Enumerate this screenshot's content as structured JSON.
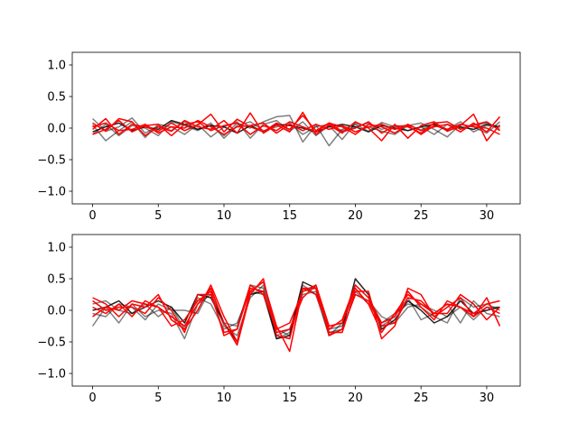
{
  "chart_data": [
    {
      "type": "line",
      "title": "",
      "xlabel": "",
      "ylabel": "",
      "xlim": [
        -1.55,
        32.55
      ],
      "ylim": [
        -1.2,
        1.2
      ],
      "xticks": [
        0,
        5,
        10,
        15,
        20,
        25,
        30
      ],
      "yticks": [
        -1.0,
        -0.5,
        0.0,
        0.5,
        1.0
      ],
      "xtick_labels": [
        "0",
        "5",
        "10",
        "15",
        "20",
        "25",
        "30"
      ],
      "ytick_labels": [
        "−1.0",
        "−0.5",
        "0.0",
        "0.5",
        "1.0"
      ],
      "grid": false,
      "x": [
        0,
        1,
        2,
        3,
        4,
        5,
        6,
        7,
        8,
        9,
        10,
        11,
        12,
        13,
        14,
        15,
        16,
        17,
        18,
        19,
        20,
        21,
        22,
        23,
        24,
        25,
        26,
        27,
        28,
        29,
        30,
        31
      ],
      "series": [
        {
          "color": "#000000",
          "opacity": 0.5,
          "values": [
            0.15,
            -0.05,
            0.02,
            0.16,
            -0.08,
            0.03,
            -0.04,
            0.1,
            -0.02,
            0.05,
            -0.12,
            0.08,
            0.0,
            0.1,
            0.18,
            0.2,
            -0.22,
            0.05,
            -0.28,
            -0.02,
            0.06,
            -0.05,
            0.09,
            0.02,
            0.05,
            -0.03,
            0.07,
            -0.02,
            0.1,
            -0.06,
            0.04,
            0.02
          ]
        },
        {
          "color": "#000000",
          "opacity": 0.5,
          "values": [
            0.05,
            -0.2,
            -0.04,
            0.1,
            -0.15,
            0.06,
            0.02,
            -0.1,
            0.06,
            -0.14,
            0.02,
            0.1,
            -0.16,
            0.06,
            0.12,
            -0.05,
            0.1,
            -0.12,
            0.04,
            -0.18,
            0.08,
            0.02,
            -0.05,
            -0.1,
            0.04,
            0.08,
            -0.02,
            -0.14,
            0.06,
            0.02,
            -0.08,
            0.1
          ]
        },
        {
          "color": "#000000",
          "opacity": 0.5,
          "values": [
            -0.1,
            0.06,
            -0.12,
            0.04,
            0.0,
            -0.12,
            0.1,
            0.04,
            -0.04,
            0.08,
            -0.16,
            0.04,
            0.1,
            -0.04,
            0.02,
            0.08,
            -0.1,
            0.02,
            0.06,
            -0.04,
            0.02,
            0.08,
            -0.02,
            0.04,
            -0.04,
            0.02,
            -0.1,
            0.06,
            0.0,
            0.04,
            0.08,
            -0.02
          ]
        },
        {
          "color": "#000000",
          "opacity": 0.85,
          "values": [
            -0.06,
            0.02,
            0.08,
            -0.04,
            0.02,
            -0.02,
            0.12,
            0.06,
            -0.02,
            0.04,
            0.02,
            -0.08,
            0.04,
            -0.06,
            0.06,
            0.04,
            0.0,
            -0.06,
            0.02,
            0.06,
            0.02,
            -0.06,
            0.04,
            0.0,
            -0.04,
            0.02,
            0.06,
            -0.04,
            0.02,
            -0.02,
            0.06,
            0.02
          ]
        },
        {
          "color": "#ff0000",
          "opacity": 1.0,
          "values": [
            0.08,
            -0.05,
            0.15,
            0.1,
            -0.12,
            0.02,
            -0.05,
            0.12,
            0.02,
            -0.02,
            0.12,
            -0.08,
            0.24,
            -0.08,
            0.05,
            -0.06,
            0.25,
            -0.1,
            0.05,
            -0.08,
            0.1,
            0.0,
            -0.2,
            0.06,
            -0.16,
            0.04,
            0.1,
            -0.05,
            0.04,
            0.22,
            -0.2,
            0.05
          ]
        },
        {
          "color": "#ff0000",
          "opacity": 1.0,
          "values": [
            -0.02,
            0.15,
            -0.1,
            0.06,
            0.02,
            -0.05,
            0.08,
            -0.04,
            0.05,
            0.22,
            -0.06,
            0.14,
            0.02,
            -0.06,
            0.08,
            -0.02,
            0.2,
            -0.04,
            0.08,
            -0.06,
            0.0,
            0.1,
            -0.08,
            0.04,
            0.02,
            -0.08,
            0.08,
            0.1,
            -0.02,
            0.05,
            0.1,
            -0.04
          ]
        },
        {
          "color": "#ff0000",
          "opacity": 1.0,
          "values": [
            -0.1,
            -0.02,
            0.12,
            -0.06,
            0.04,
            0.06,
            -0.12,
            0.06,
            0.1,
            -0.04,
            0.04,
            0.08,
            -0.1,
            0.04,
            -0.04,
            0.1,
            0.02,
            -0.06,
            0.08,
            0.02,
            -0.1,
            0.06,
            0.02,
            -0.08,
            0.06,
            -0.04,
            0.02,
            0.06,
            -0.06,
            0.08,
            -0.06,
            0.18
          ]
        },
        {
          "color": "#ff0000",
          "opacity": 1.0,
          "values": [
            0.02,
            0.08,
            -0.04,
            -0.02,
            0.06,
            -0.08,
            0.02,
            0.0,
            0.12,
            0.02,
            -0.1,
            0.02,
            0.04,
            0.08,
            -0.08,
            0.06,
            -0.04,
            0.06,
            -0.02,
            0.04,
            -0.06,
            0.02,
            0.06,
            -0.02,
            0.04,
            -0.1,
            0.04,
            -0.02,
            0.06,
            0.02,
            0.0,
            -0.1
          ]
        }
      ]
    },
    {
      "type": "line",
      "title": "",
      "xlabel": "",
      "ylabel": "",
      "xlim": [
        -1.55,
        32.55
      ],
      "ylim": [
        -1.2,
        1.2
      ],
      "xticks": [
        0,
        5,
        10,
        15,
        20,
        25,
        30
      ],
      "yticks": [
        -1.0,
        -0.5,
        0.0,
        0.5,
        1.0
      ],
      "xtick_labels": [
        "0",
        "5",
        "10",
        "15",
        "20",
        "25",
        "30"
      ],
      "ytick_labels": [
        "−1.0",
        "−0.5",
        "0.0",
        "0.5",
        "1.0"
      ],
      "grid": false,
      "x": [
        0,
        1,
        2,
        3,
        4,
        5,
        6,
        7,
        8,
        9,
        10,
        11,
        12,
        13,
        14,
        15,
        16,
        17,
        18,
        19,
        20,
        21,
        22,
        23,
        24,
        25,
        26,
        27,
        28,
        29,
        30,
        31
      ],
      "series": [
        {
          "color": "#000000",
          "opacity": 0.5,
          "values": [
            -0.25,
            0.05,
            -0.2,
            0.1,
            -0.1,
            0.0,
            -0.05,
            -0.45,
            0.1,
            0.25,
            -0.2,
            -0.25,
            0.4,
            0.35,
            -0.4,
            -0.3,
            0.3,
            0.35,
            -0.3,
            -0.25,
            0.4,
            0.2,
            -0.25,
            -0.1,
            0.2,
            -0.15,
            -0.05,
            0.1,
            -0.2,
            0.15,
            -0.05,
            -0.1
          ]
        },
        {
          "color": "#000000",
          "opacity": 0.5,
          "values": [
            0.1,
            0.15,
            0.0,
            -0.05,
            0.1,
            -0.1,
            0.05,
            -0.3,
            0.2,
            0.1,
            -0.3,
            -0.2,
            0.3,
            0.25,
            -0.45,
            -0.35,
            0.4,
            0.25,
            -0.4,
            -0.2,
            0.3,
            0.1,
            -0.2,
            -0.05,
            0.1,
            0.05,
            -0.1,
            -0.2,
            0.2,
            0.05,
            0.1,
            0.0
          ]
        },
        {
          "color": "#000000",
          "opacity": 0.5,
          "values": [
            -0.05,
            -0.1,
            0.1,
            0.05,
            -0.15,
            0.1,
            0.0,
            0.0,
            -0.05,
            0.35,
            -0.25,
            -0.4,
            0.2,
            0.4,
            -0.3,
            -0.4,
            0.25,
            0.3,
            -0.35,
            -0.3,
            0.25,
            0.15,
            -0.1,
            -0.2,
            0.05,
            0.1,
            0.0,
            -0.1,
            0.05,
            -0.15,
            0.05,
            0.05
          ]
        },
        {
          "color": "#000000",
          "opacity": 0.85,
          "values": [
            0.0,
            0.05,
            0.15,
            -0.05,
            0.05,
            0.15,
            0.05,
            -0.2,
            0.25,
            0.2,
            -0.2,
            -0.5,
            0.25,
            0.3,
            -0.45,
            -0.4,
            0.45,
            0.35,
            -0.4,
            -0.3,
            0.5,
            0.25,
            -0.3,
            -0.15,
            0.15,
            0.0,
            -0.2,
            -0.1,
            0.15,
            -0.05,
            0.0,
            0.05
          ]
        },
        {
          "color": "#ff0000",
          "opacity": 1.0,
          "values": [
            0.2,
            0.1,
            -0.1,
            0.1,
            0.05,
            0.25,
            -0.15,
            -0.3,
            0.0,
            0.4,
            -0.1,
            -0.5,
            0.3,
            0.45,
            -0.25,
            -0.65,
            0.35,
            0.35,
            -0.35,
            -0.35,
            0.3,
            0.3,
            -0.45,
            -0.25,
            0.35,
            0.25,
            -0.1,
            0.05,
            0.2,
            -0.1,
            0.2,
            -0.25
          ]
        },
        {
          "color": "#ff0000",
          "opacity": 1.0,
          "values": [
            -0.1,
            0.05,
            0.0,
            0.15,
            0.1,
            0.05,
            -0.25,
            -0.15,
            0.15,
            0.3,
            -0.4,
            -0.3,
            0.4,
            0.25,
            -0.3,
            -0.2,
            0.3,
            0.4,
            -0.25,
            -0.2,
            0.35,
            0.1,
            -0.35,
            -0.05,
            0.25,
            0.1,
            -0.05,
            0.1,
            0.05,
            -0.05,
            0.1,
            0.15
          ]
        },
        {
          "color": "#ff0000",
          "opacity": 1.0,
          "values": [
            0.05,
            -0.05,
            0.1,
            -0.1,
            0.15,
            0.05,
            -0.1,
            -0.25,
            0.1,
            0.35,
            -0.2,
            -0.55,
            0.25,
            0.5,
            -0.4,
            -0.45,
            0.35,
            0.25,
            -0.3,
            -0.15,
            0.4,
            0.2,
            -0.2,
            -0.1,
            0.3,
            0.05,
            -0.15,
            0.15,
            0.05,
            -0.1,
            0.05,
            -0.05
          ]
        },
        {
          "color": "#ff0000",
          "opacity": 1.0,
          "values": [
            0.15,
            0.0,
            0.05,
            0.05,
            -0.05,
            0.2,
            0.0,
            -0.35,
            0.25,
            0.25,
            -0.35,
            -0.3,
            0.35,
            0.3,
            -0.35,
            -0.3,
            0.2,
            0.4,
            -0.4,
            -0.3,
            0.25,
            0.15,
            -0.25,
            -0.2,
            0.2,
            0.15,
            -0.05,
            -0.05,
            0.25,
            0.1,
            -0.15,
            0.05
          ]
        }
      ]
    }
  ]
}
